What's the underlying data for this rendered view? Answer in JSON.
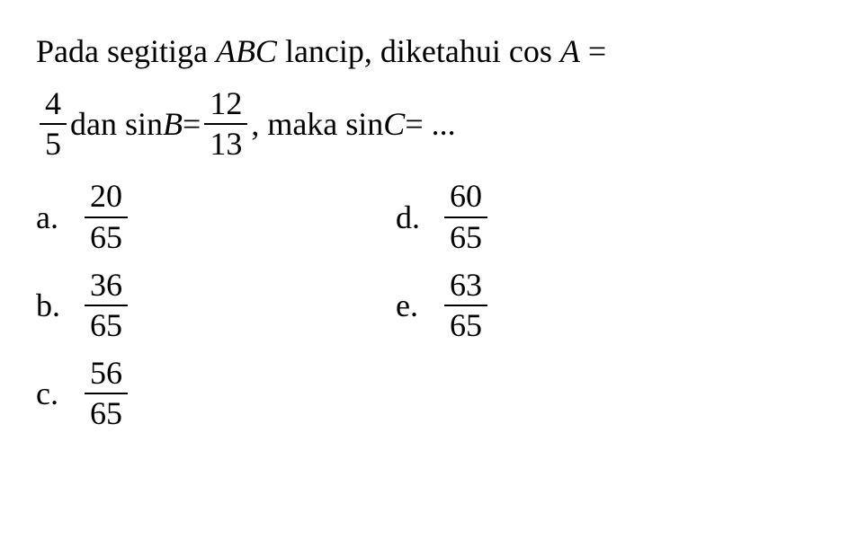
{
  "question": {
    "line1_part1": "Pada segitiga ",
    "line1_ABC": "ABC",
    "line1_part2": " lancip, diketahui cos ",
    "line1_A": "A",
    "line1_part3": " =",
    "frac1_num": "4",
    "frac1_den": "5",
    "line2_part1": " dan sin ",
    "line2_B": "B",
    "line2_part2": " = ",
    "frac2_num": "12",
    "frac2_den": "13",
    "line2_part3": ", maka sin ",
    "line2_C": "C",
    "line2_part4": " = ..."
  },
  "options": {
    "a": {
      "label": "a.",
      "num": "20",
      "den": "65"
    },
    "b": {
      "label": "b.",
      "num": "36",
      "den": "65"
    },
    "c": {
      "label": "c.",
      "num": "56",
      "den": "65"
    },
    "d": {
      "label": "d.",
      "num": "60",
      "den": "65"
    },
    "e": {
      "label": "e.",
      "num": "63",
      "den": "65"
    }
  },
  "style": {
    "font_family": "Times New Roman",
    "font_size_pt": 28,
    "text_color": "#000000",
    "background_color": "#ffffff"
  }
}
